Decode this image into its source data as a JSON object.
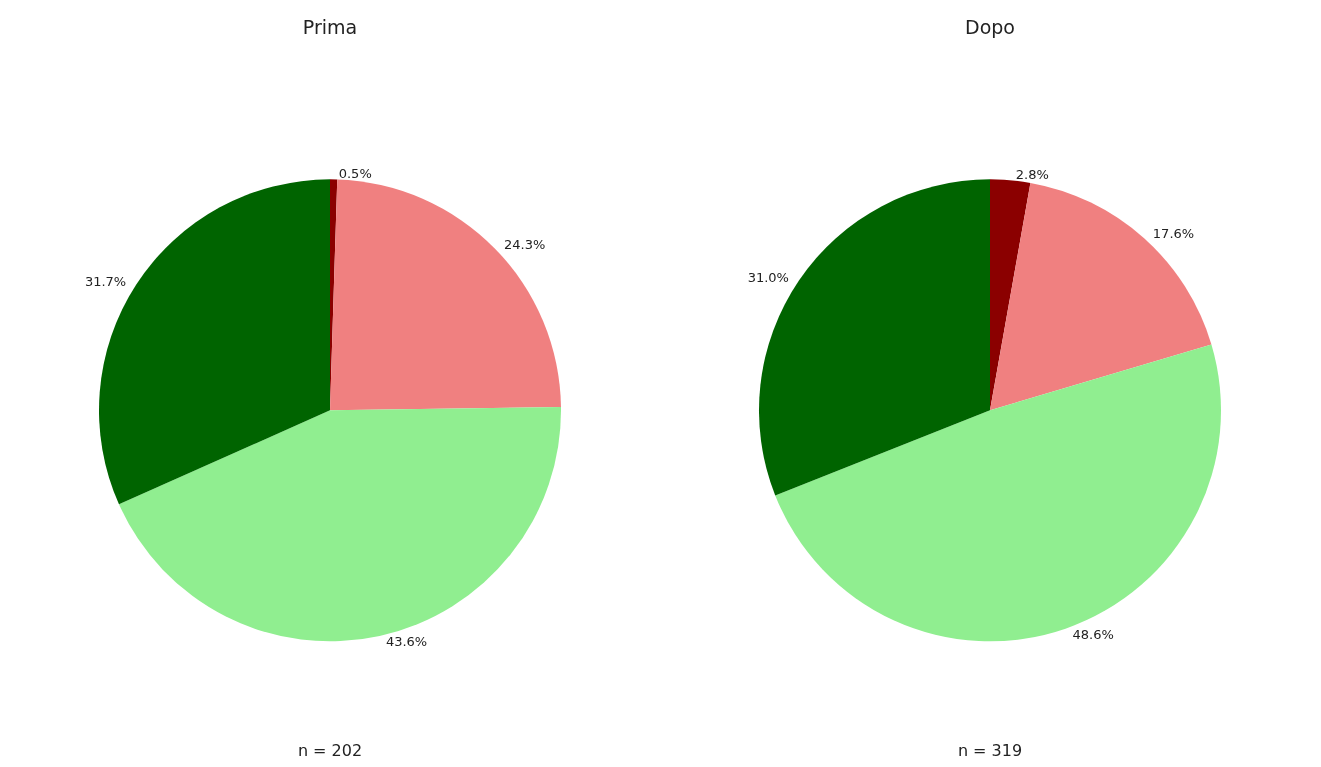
{
  "chart_data": [
    {
      "type": "pie",
      "title": "Prima",
      "categories": [
        null,
        null,
        null,
        null
      ],
      "values": [
        0.5,
        24.3,
        43.6,
        31.7
      ],
      "colors": [
        "#8b0000",
        "#f08080",
        "#90ee90",
        "#006400"
      ],
      "value_labels": [
        "0.5%",
        "24.3%",
        "43.6%",
        "31.7%"
      ],
      "annotations": [
        "n = 202"
      ]
    },
    {
      "type": "pie",
      "title": "Dopo",
      "categories": [
        null,
        null,
        null,
        null
      ],
      "values": [
        2.8,
        17.6,
        48.6,
        31.0
      ],
      "colors": [
        "#8b0000",
        "#f08080",
        "#90ee90",
        "#006400"
      ],
      "value_labels": [
        "2.8%",
        "17.6%",
        "48.6%",
        "31.0%"
      ],
      "annotations": [
        "n = 319"
      ]
    }
  ]
}
